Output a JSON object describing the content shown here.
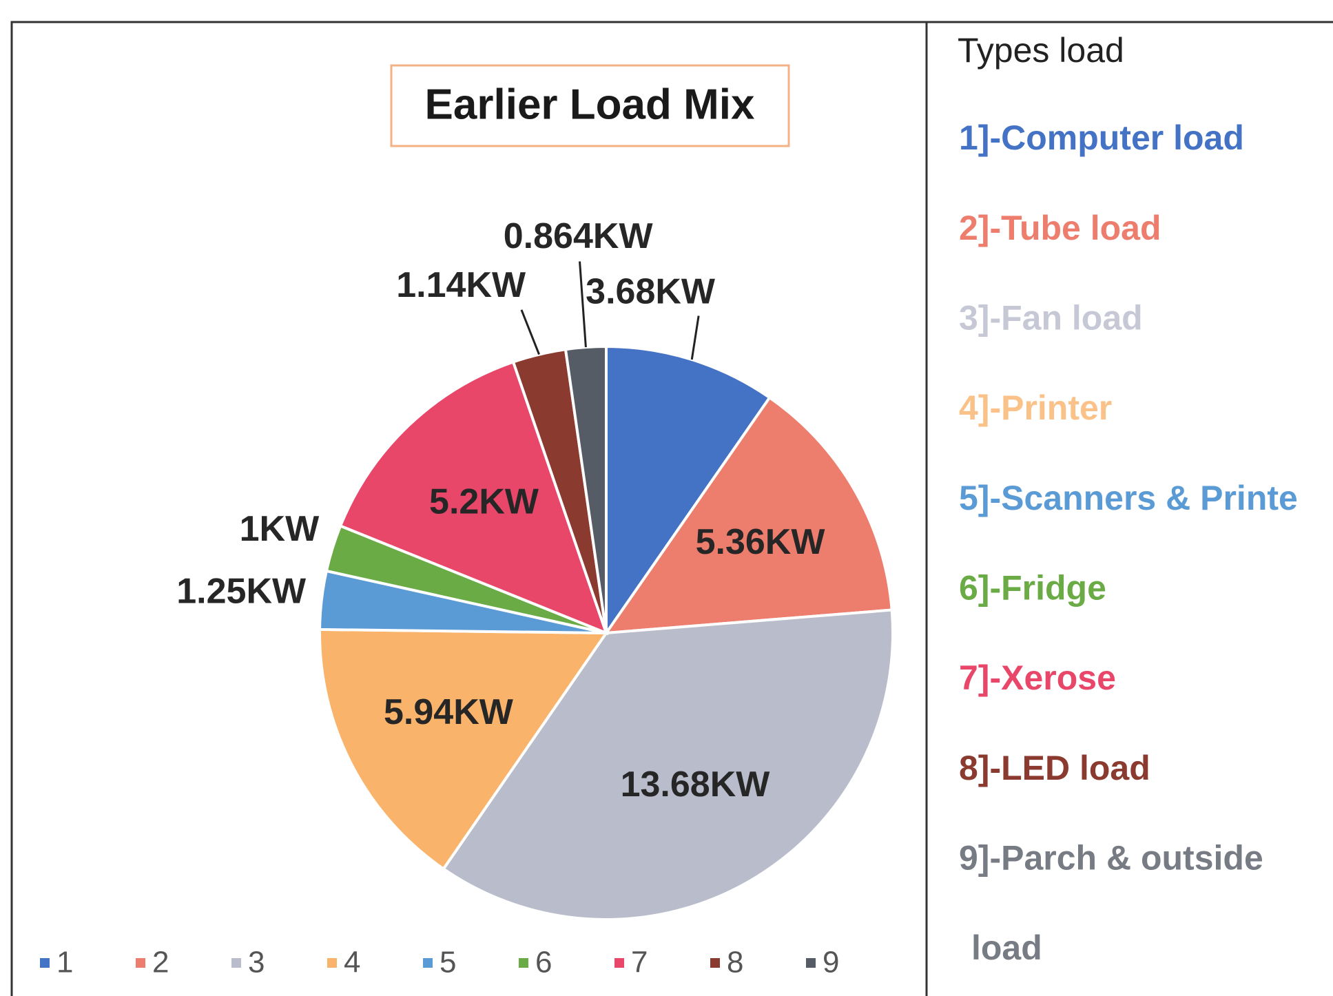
{
  "chart_data": {
    "type": "pie",
    "title": "Earlier Load Mix",
    "categories": [
      "1",
      "2",
      "3",
      "4",
      "5",
      "6",
      "7",
      "8",
      "9"
    ],
    "values": [
      3.68,
      5.36,
      13.68,
      5.94,
      1.25,
      1,
      5.2,
      1.14,
      0.864
    ],
    "value_labels": [
      "3.68KW",
      "5.36KW",
      "13.68KW",
      "5.94KW",
      "1.25KW",
      "1KW",
      "5.2KW",
      "1.14KW",
      "0.864KW"
    ],
    "colors": [
      "#4472c4",
      "#ed7d6d",
      "#b8bccb",
      "#f9b36b",
      "#5b9bd5",
      "#6aab45",
      "#e8476a",
      "#8b3a2f",
      "#565c66"
    ],
    "legend": "bottom"
  },
  "legend_panel": {
    "title": "Types load",
    "items": [
      [
        "1]-Computer load"
      ],
      [
        "2]-Tube load"
      ],
      [
        "3]-Fan load"
      ],
      [
        "4]-Printer"
      ],
      [
        "5]-Scanners & Printe"
      ],
      [
        "6]-Fridge"
      ],
      [
        "7]-Xerose"
      ],
      [
        "8]-LED load"
      ],
      [
        "9]-Parch & outside",
        "load"
      ]
    ]
  }
}
